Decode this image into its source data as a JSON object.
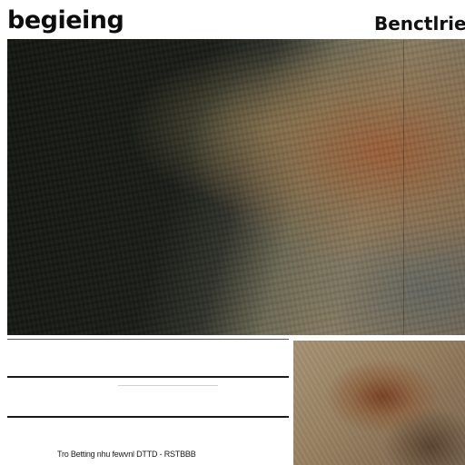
{
  "header": {
    "title_left": "begieing",
    "title_right": "Benctlrie"
  },
  "images": {
    "main": {
      "description_icon": "photo-texture-dark-to-rust"
    },
    "thumbnail": {
      "description_icon": "photo-texture-rust"
    }
  },
  "footer": {
    "caption": "Tro Betting nhu fewvnl DTTD - RSTBBB"
  },
  "colors": {
    "background": "#ffffff",
    "text": "#0d0d0d",
    "rule": "#1a1a1a"
  }
}
